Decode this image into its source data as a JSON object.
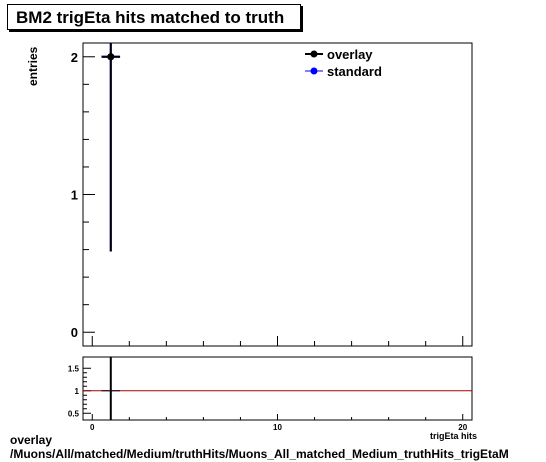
{
  "chart_data": [
    {
      "type": "scatter",
      "title": "BM2 trigEta hits matched to truth",
      "ylabel": "entries",
      "xlim": [
        -0.5,
        20.5
      ],
      "ylim": [
        -0.1,
        2.1
      ],
      "x_ticks": [
        0,
        10,
        20
      ],
      "y_ticks": [
        0,
        1,
        2
      ],
      "legend": "top-right",
      "series": [
        {
          "name": "overlay",
          "color": "#000000",
          "points": [
            {
              "x": 1,
              "y": 2,
              "err": 1.414
            }
          ]
        },
        {
          "name": "standard",
          "color": "#0000ff",
          "points": [
            {
              "x": 1,
              "y": 2,
              "err": 1.414
            }
          ]
        }
      ]
    },
    {
      "type": "line",
      "ylim": [
        0.35,
        1.75
      ],
      "y_ticks": [
        0.5,
        1,
        1.5
      ],
      "y_tick_labels": [
        "0.5",
        "1",
        "1.5"
      ],
      "reference_line": {
        "y": 1,
        "color": "#aa0000"
      },
      "points": [
        {
          "x": 1,
          "y": 1
        }
      ]
    }
  ],
  "xlabel_partial": "trigEta hits",
  "footer": {
    "line1": "overlay",
    "line2": "/Muons/All/matched/Medium/truthHits/Muons_All_matched_Medium_truthHits_trigEtaM"
  }
}
